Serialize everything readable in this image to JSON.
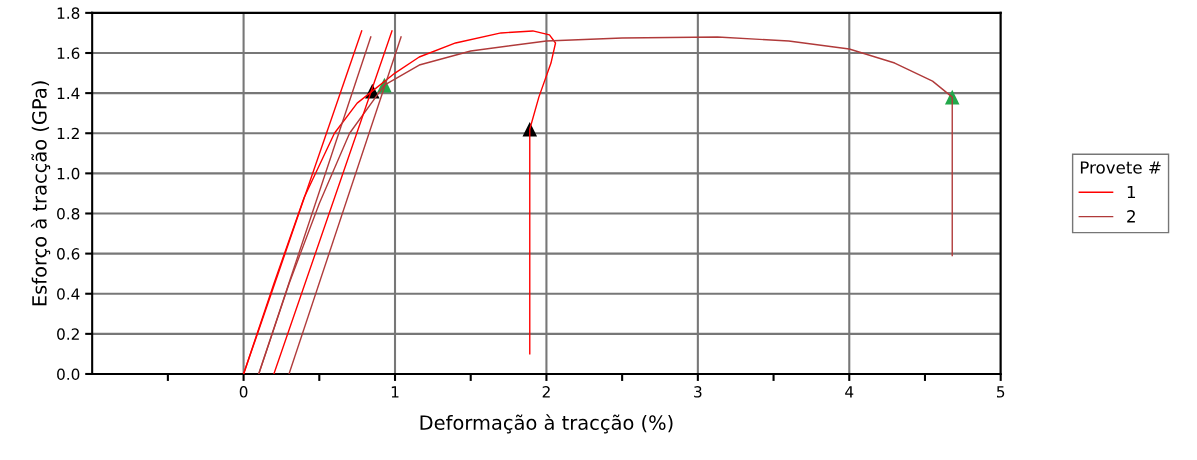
{
  "chart_data": {
    "type": "line",
    "xlabel": "Deformação à tracção (%)",
    "ylabel": "Esforço à tracção (GPa)",
    "legend_title": "Provete #",
    "legend": "right",
    "grid": true,
    "marker": "none",
    "line_style": "solid",
    "xlim": [
      -1,
      5
    ],
    "ylim": [
      0,
      1.8
    ],
    "xticks": [
      {
        "value": -0.5,
        "label": null
      },
      0,
      {
        "value": 0.5,
        "label": null
      },
      1,
      {
        "value": 1.5,
        "label": null
      },
      2,
      {
        "value": 2.5,
        "label": null
      },
      3,
      {
        "value": 3.5,
        "label": null
      },
      4,
      {
        "value": 4.5,
        "label": null
      },
      5
    ],
    "yticks": [
      {
        "value": 0,
        "label": "0.0"
      },
      {
        "value": 0.2,
        "label": "0.2"
      },
      {
        "value": 0.4,
        "label": "0.4"
      },
      {
        "value": 0.6,
        "label": "0.6"
      },
      {
        "value": 0.8,
        "label": "0.8"
      },
      {
        "value": 1.0,
        "label": "1.0"
      },
      {
        "value": 1.2,
        "label": "1.2"
      },
      {
        "value": 1.4,
        "label": "1.4"
      },
      {
        "value": 1.6,
        "label": "1.6"
      },
      {
        "value": 1.8,
        "label": "1.8"
      }
    ],
    "series": [
      {
        "name": "1",
        "color": "#ff0000",
        "x": [
          0,
          0.2,
          0.4,
          0.6,
          0.75,
          0.85,
          1.0,
          1.16,
          1.4,
          1.7,
          1.91,
          2.02,
          2.06,
          2.03,
          1.95,
          1.89,
          1.89
        ],
        "values": [
          0,
          0.45,
          0.88,
          1.2,
          1.35,
          1.41,
          1.5,
          1.58,
          1.65,
          1.7,
          1.71,
          1.69,
          1.65,
          1.55,
          1.38,
          1.22,
          0.1
        ]
      },
      {
        "name": "2",
        "color": "#b03a3a",
        "x": [
          0.1,
          0.3,
          0.5,
          0.7,
          0.93,
          1.16,
          1.5,
          2.0,
          2.5,
          3.13,
          3.6,
          4.0,
          4.3,
          4.55,
          4.68,
          4.68
        ],
        "values": [
          0,
          0.45,
          0.85,
          1.2,
          1.44,
          1.54,
          1.61,
          1.66,
          1.675,
          1.68,
          1.66,
          1.62,
          1.55,
          1.46,
          1.38,
          0.59
        ]
      },
      {
        "color": "#ff0000",
        "x": [
          0,
          0.78
        ],
        "values": [
          0,
          1.71
        ]
      },
      {
        "color": "#b03a3a",
        "x": [
          0.1,
          0.84
        ],
        "values": [
          0,
          1.68
        ]
      },
      {
        "color": "#ff0000",
        "x": [
          0.2,
          0.98
        ],
        "values": [
          0,
          1.71
        ]
      },
      {
        "color": "#b03a3a",
        "x": [
          0.3,
          1.04
        ],
        "values": [
          0,
          1.68
        ]
      },
      {
        "type": "scatter",
        "marker": "triangle",
        "color": "#000000",
        "x": [
          0.85,
          1.89
        ],
        "values": [
          1.41,
          1.22
        ]
      },
      {
        "type": "scatter",
        "marker": "triangle",
        "color": "#22a84a",
        "x": [
          0.93,
          4.68
        ],
        "values": [
          1.44,
          1.38
        ]
      }
    ]
  }
}
